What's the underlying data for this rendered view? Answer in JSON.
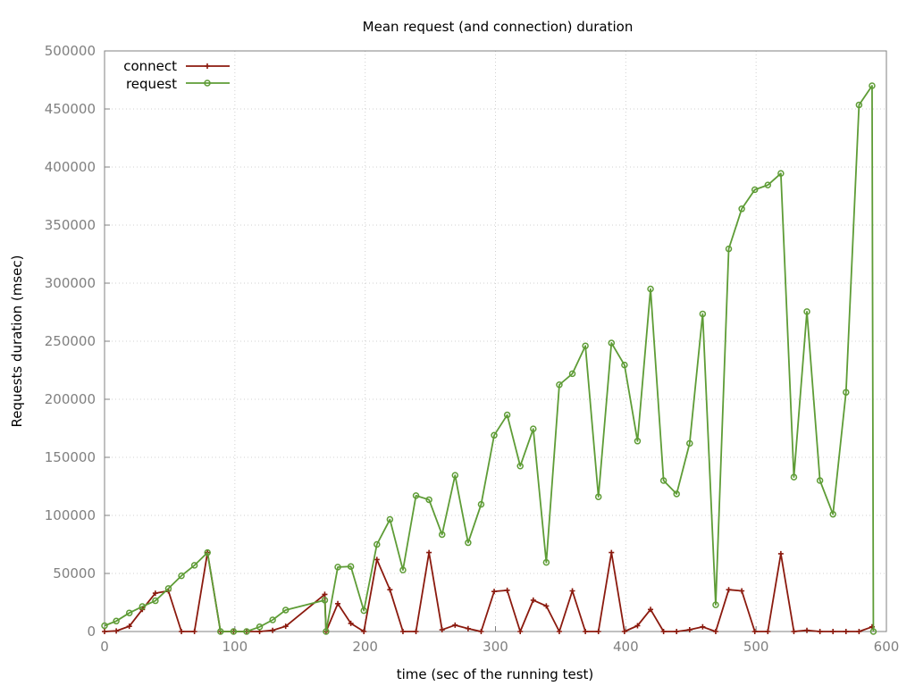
{
  "chart_data": {
    "type": "line",
    "title": "Mean request (and connection) duration",
    "xlabel": "time (sec of the running test)",
    "ylabel": "Requests duration (msec)",
    "xlim": [
      0,
      600
    ],
    "ylim": [
      0,
      500000
    ],
    "x_ticks": [
      0,
      100,
      200,
      300,
      400,
      500,
      600
    ],
    "y_ticks": [
      0,
      50000,
      100000,
      150000,
      200000,
      250000,
      300000,
      350000,
      400000,
      450000,
      500000
    ],
    "grid": true,
    "legend_position": "top-left",
    "series": [
      {
        "name": "connect",
        "color": "#8b1a0e",
        "marker": "plus",
        "x": [
          0,
          9,
          19,
          29,
          39,
          49,
          59,
          69,
          79,
          89,
          99,
          109,
          119,
          129,
          139,
          169,
          170,
          179,
          189,
          199,
          209,
          219,
          229,
          239,
          249,
          259,
          269,
          279,
          289,
          299,
          309,
          319,
          329,
          339,
          349,
          359,
          369,
          379,
          389,
          399,
          409,
          419,
          429,
          439,
          449,
          459,
          469,
          479,
          489,
          499,
          509,
          519,
          529,
          539,
          549,
          559,
          569,
          579,
          589
        ],
        "values": [
          0,
          500,
          4500,
          19000,
          33000,
          35000,
          0,
          0,
          68000,
          0,
          0,
          0,
          0,
          1000,
          4500,
          32000,
          0,
          24000,
          7000,
          0,
          62000,
          36000,
          0,
          0,
          68000,
          1500,
          5500,
          2500,
          0,
          34500,
          35500,
          0,
          27000,
          22000,
          0,
          35000,
          0,
          0,
          68000,
          0,
          5000,
          19000,
          0,
          0,
          1500,
          4000,
          0,
          36000,
          35000,
          0,
          0,
          67000,
          0,
          1000,
          0,
          0,
          0,
          0,
          4000
        ]
      },
      {
        "name": "request",
        "color": "#5e9c36",
        "marker": "circle",
        "x": [
          0,
          9,
          19,
          29,
          39,
          49,
          59,
          69,
          79,
          89,
          99,
          109,
          119,
          129,
          139,
          169,
          170,
          179,
          189,
          199,
          209,
          219,
          229,
          239,
          249,
          259,
          269,
          279,
          289,
          299,
          309,
          319,
          329,
          339,
          349,
          359,
          369,
          379,
          389,
          399,
          409,
          419,
          429,
          439,
          449,
          459,
          469,
          479,
          489,
          499,
          509,
          519,
          529,
          539,
          549,
          559,
          569,
          579,
          589,
          590
        ],
        "values": [
          5000,
          9000,
          16000,
          21500,
          26500,
          37000,
          48000,
          57000,
          68000,
          0,
          0,
          0,
          4000,
          10000,
          18500,
          27000,
          0,
          55500,
          56000,
          18000,
          75000,
          96500,
          53000,
          117000,
          113500,
          83500,
          134500,
          76500,
          109500,
          169000,
          186500,
          142500,
          174500,
          59500,
          212500,
          222000,
          246000,
          116000,
          248500,
          229500,
          164000,
          295000,
          130000,
          118500,
          162000,
          273500,
          23000,
          329500,
          364000,
          380500,
          384500,
          394500,
          133000,
          275500,
          130000,
          101000,
          206000,
          453500,
          470000,
          0
        ]
      }
    ]
  }
}
